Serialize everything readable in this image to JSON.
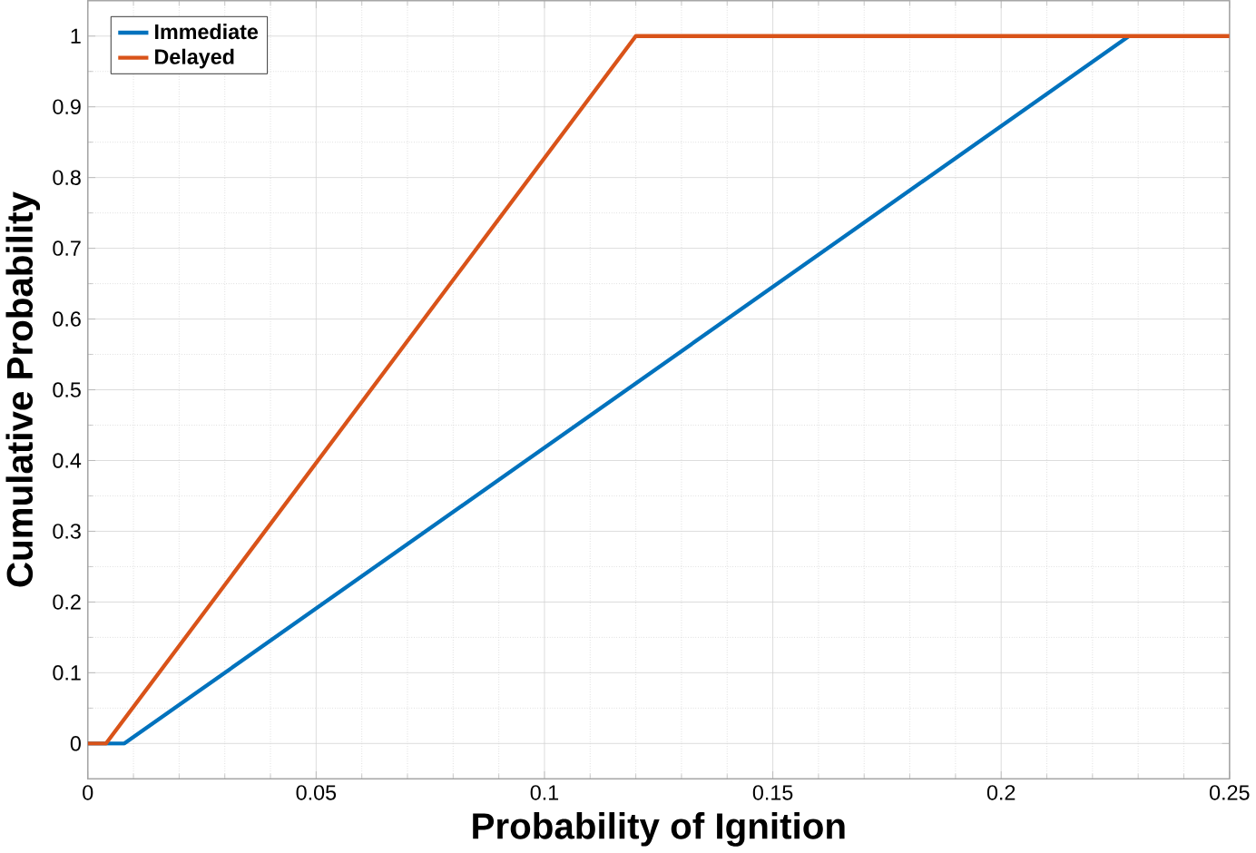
{
  "chart_data": {
    "type": "line",
    "xlabel": "Probability of Ignition",
    "ylabel": "Cumulative Probability",
    "xlim": [
      0,
      0.25
    ],
    "ylim": [
      -0.05,
      1.05
    ],
    "xticks": [
      0,
      0.05,
      0.1,
      0.15,
      0.2,
      0.25
    ],
    "yticks": [
      0,
      0.1,
      0.2,
      0.3,
      0.4,
      0.5,
      0.6,
      0.7,
      0.8,
      0.9,
      1
    ],
    "grid": true,
    "legend": "top left",
    "marker": "none",
    "line_style": "solid",
    "series": [
      {
        "name": "Immediate",
        "color": "#0072bd",
        "x": [
          0,
          0.008,
          0.228
        ],
        "values": [
          0,
          0,
          1
        ]
      },
      {
        "name": "Delayed",
        "color": "#d95319",
        "x": [
          0,
          0.004,
          0.12,
          0.25
        ],
        "values": [
          0,
          0,
          1,
          1
        ]
      }
    ]
  }
}
